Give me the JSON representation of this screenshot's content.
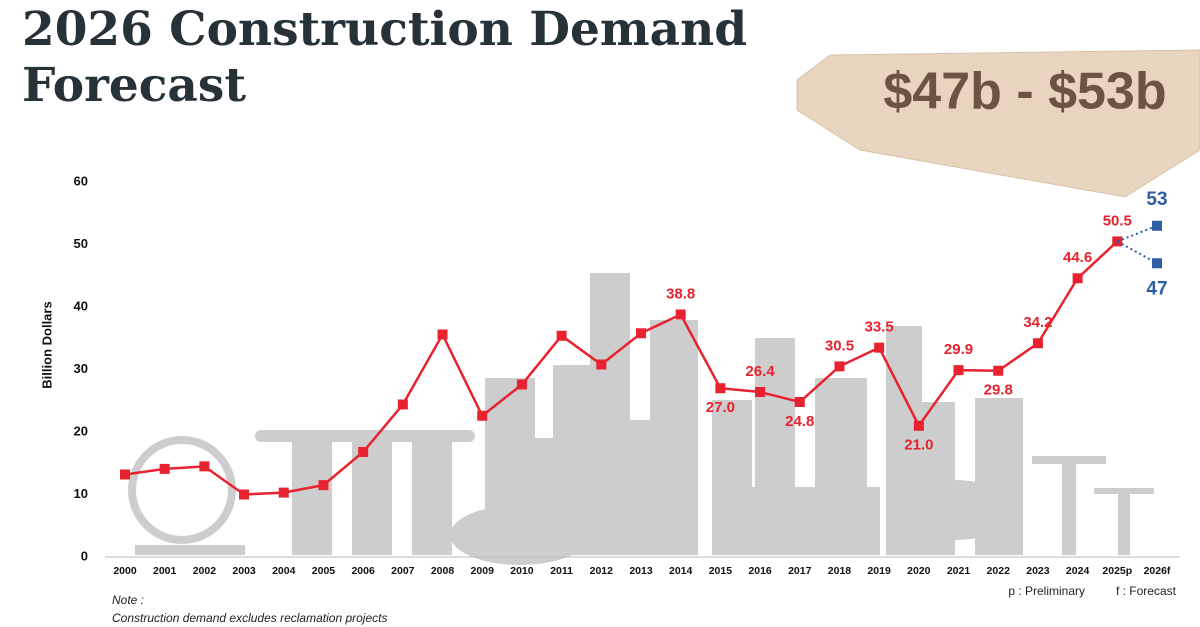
{
  "chart_data": {
    "type": "line",
    "title": "2026 Construction Demand Forecast",
    "badge": "$47b - $53b",
    "y_label": "Billion Dollars",
    "categories": [
      "2000",
      "2001",
      "2002",
      "2003",
      "2004",
      "2005",
      "2006",
      "2007",
      "2008",
      "2009",
      "2010",
      "2011",
      "2012",
      "2013",
      "2014",
      "2015",
      "2016",
      "2017",
      "2018",
      "2019",
      "2020",
      "2021",
      "2022",
      "2023",
      "2024",
      "2025p",
      "2026f"
    ],
    "series": [
      {
        "color": "#e8222e",
        "values": [
          13.2,
          14.1,
          14.5,
          10.0,
          10.3,
          11.5,
          16.8,
          24.4,
          35.6,
          22.6,
          27.6,
          35.4,
          30.8,
          35.8,
          38.8,
          27.0,
          26.4,
          24.8,
          30.5,
          33.5,
          21.0,
          29.9,
          29.8,
          34.2,
          44.6,
          50.5,
          null
        ],
        "value_labels": [
          null,
          null,
          null,
          null,
          null,
          null,
          null,
          null,
          null,
          null,
          null,
          null,
          null,
          null,
          "38.8",
          "27.0",
          "26.4",
          "24.8",
          "30.5",
          "33.5",
          "21.0",
          "29.9",
          "29.8",
          "34.2",
          "44.6",
          "50.5",
          null
        ]
      }
    ],
    "forecast": {
      "color": "#2e5fa3",
      "values": [
        53,
        47
      ]
    },
    "ylim": [
      0,
      60
    ],
    "yticks": [
      0,
      10,
      20,
      30,
      40,
      50,
      60
    ],
    "grid": false,
    "note_title": "Note :",
    "note": "Construction demand excludes reclamation projects",
    "legend_p": "p : Preliminary",
    "legend_f": "f : Forecast"
  }
}
